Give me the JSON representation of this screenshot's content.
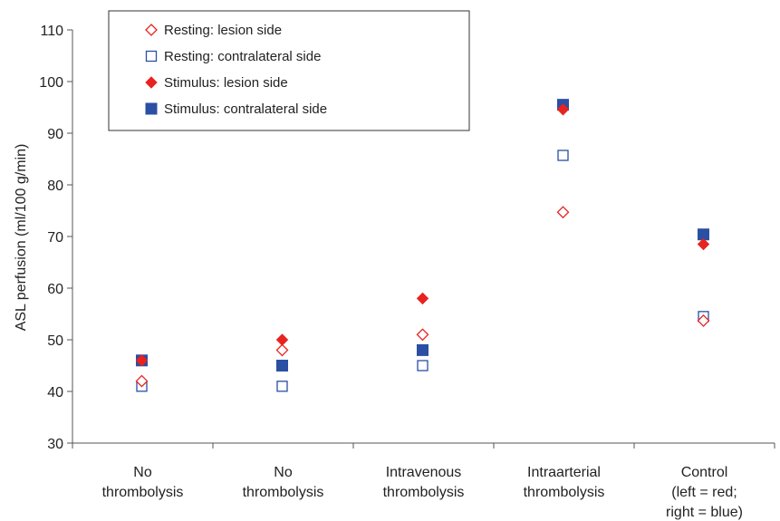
{
  "chart_data": {
    "type": "scatter",
    "title": "",
    "xlabel": "",
    "ylabel": "ASL perfusion (ml/100 g/min)",
    "ylim": [
      30,
      110
    ],
    "yticks": [
      30,
      40,
      50,
      60,
      70,
      80,
      90,
      100,
      110
    ],
    "grid": false,
    "legend_position": "top-left",
    "categories": [
      [
        "No",
        "thrombolysis"
      ],
      [
        "No",
        "thrombolysis"
      ],
      [
        "Intravenous",
        "thrombolysis"
      ],
      [
        "Intraarterial",
        "thrombolysis"
      ],
      [
        "Control",
        "(left = red;",
        "right = blue)"
      ]
    ],
    "series": [
      {
        "name": "Resting: lesion side",
        "marker": "diamond-open",
        "color": "#e8231f",
        "values": [
          42,
          48,
          51,
          74.7,
          53.7
        ]
      },
      {
        "name": "Resting: contralateral side",
        "marker": "square-open",
        "color": "#2a4fa3",
        "values": [
          41,
          41,
          45,
          85.7,
          54.5
        ]
      },
      {
        "name": "Stimulus: lesion side",
        "marker": "diamond-filled",
        "color": "#e8231f",
        "values": [
          46,
          50,
          58,
          94.6,
          68.5
        ]
      },
      {
        "name": "Stimulus: contralateral side",
        "marker": "square-filled",
        "color": "#2a4fa3",
        "values": [
          46,
          45,
          48,
          95.5,
          70.4
        ]
      }
    ]
  }
}
